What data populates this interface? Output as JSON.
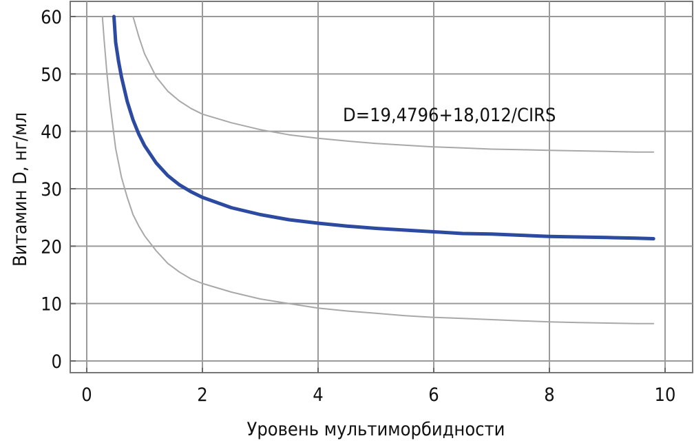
{
  "chart_data": {
    "type": "line",
    "title": "",
    "xlabel": "Уровень мультиморбидности",
    "ylabel": "Витамин D, нг/мл",
    "xlim": [
      0,
      10
    ],
    "ylim": [
      0,
      60
    ],
    "x_ticks": [
      "0",
      "2",
      "4",
      "6",
      "8",
      "10"
    ],
    "y_ticks": [
      "0",
      "10",
      "20",
      "30",
      "40",
      "50",
      "60"
    ],
    "grid": true,
    "annotation": "D=19,4796+18,012/CIRS",
    "series": [
      {
        "role": "fit",
        "color": "#2b4aa0",
        "x": [
          0.47,
          0.5,
          0.55,
          0.6,
          0.7,
          0.8,
          0.9,
          1.0,
          1.2,
          1.4,
          1.6,
          1.8,
          2.0,
          2.5,
          3.0,
          3.5,
          4.0,
          4.5,
          5.0,
          5.5,
          6.0,
          6.5,
          7.0,
          7.5,
          8.0,
          8.5,
          9.0,
          9.5,
          9.8
        ],
        "y": [
          60.0,
          55.5,
          52.2,
          49.5,
          45.2,
          42.0,
          39.5,
          37.5,
          34.5,
          32.3,
          30.7,
          29.5,
          28.5,
          26.7,
          25.5,
          24.6,
          24.0,
          23.5,
          23.1,
          22.8,
          22.5,
          22.2,
          22.1,
          21.9,
          21.7,
          21.6,
          21.5,
          21.4,
          21.3
        ]
      },
      {
        "role": "upper-band",
        "color": "#a8a8a8",
        "x": [
          0.8,
          0.9,
          1.0,
          1.2,
          1.4,
          1.6,
          1.8,
          2.0,
          2.5,
          3.0,
          3.5,
          4.0,
          4.5,
          5.0,
          5.5,
          6.0,
          6.5,
          7.0,
          7.5,
          8.0,
          8.5,
          9.0,
          9.5,
          9.8
        ],
        "y": [
          60.0,
          56.5,
          53.5,
          49.5,
          47.0,
          45.3,
          44.0,
          43.0,
          41.5,
          40.3,
          39.4,
          38.8,
          38.3,
          37.9,
          37.6,
          37.3,
          37.1,
          36.9,
          36.8,
          36.7,
          36.6,
          36.5,
          36.4,
          36.4
        ]
      },
      {
        "role": "lower-band",
        "color": "#a8a8a8",
        "x": [
          0.27,
          0.3,
          0.35,
          0.4,
          0.5,
          0.6,
          0.7,
          0.8,
          0.9,
          1.0,
          1.2,
          1.4,
          1.6,
          1.8,
          2.0,
          2.5,
          3.0,
          3.5,
          4.0,
          4.5,
          5.0,
          5.5,
          6.0,
          6.5,
          7.0,
          7.5,
          8.0,
          8.5,
          9.0,
          9.5,
          9.8
        ],
        "y": [
          60.0,
          56.0,
          50.0,
          45.0,
          37.0,
          32.0,
          28.5,
          25.5,
          23.5,
          21.8,
          19.2,
          17.0,
          15.5,
          14.3,
          13.5,
          12.0,
          10.8,
          10.0,
          9.2,
          8.7,
          8.3,
          7.9,
          7.6,
          7.4,
          7.2,
          7.0,
          6.8,
          6.7,
          6.6,
          6.5,
          6.5
        ]
      }
    ]
  }
}
